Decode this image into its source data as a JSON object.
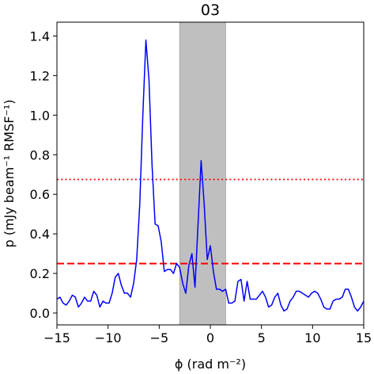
{
  "chart_data": {
    "type": "line",
    "title": "03",
    "xlabel": "ϕ (rad m⁻²)",
    "ylabel": "p (mJy beam⁻¹ RMSF⁻¹)",
    "xlim": [
      -15,
      15
    ],
    "ylim": [
      -0.06,
      1.47
    ],
    "xticks": [
      -15,
      -10,
      -5,
      0,
      5,
      10,
      15
    ],
    "xtick_labels": [
      "−15",
      "−10",
      "−5",
      "0",
      "5",
      "10",
      "15"
    ],
    "yticks": [
      0.0,
      0.2,
      0.4,
      0.6,
      0.8,
      1.0,
      1.2,
      1.4
    ],
    "ytick_labels": [
      "0.0",
      "0.2",
      "0.4",
      "0.6",
      "0.8",
      "1.0",
      "1.2",
      "1.4"
    ],
    "grid": false,
    "shaded_band": {
      "x": [
        -3.0,
        1.5
      ],
      "color": "#bfbfbf"
    },
    "hlines": [
      {
        "y": 0.675,
        "style": "dotted",
        "color": "#ff0000"
      },
      {
        "y": 0.25,
        "style": "dashed",
        "color": "#ff0000"
      }
    ],
    "series": [
      {
        "color": "#0000ff",
        "x": [
          -15.0,
          -14.7,
          -14.4,
          -14.1,
          -13.8,
          -13.5,
          -13.2,
          -12.9,
          -12.6,
          -12.3,
          -12.0,
          -11.7,
          -11.4,
          -11.1,
          -10.8,
          -10.5,
          -10.2,
          -9.9,
          -9.6,
          -9.3,
          -9.0,
          -8.7,
          -8.4,
          -8.1,
          -7.8,
          -7.5,
          -7.2,
          -6.9,
          -6.6,
          -6.3,
          -6.0,
          -5.7,
          -5.4,
          -5.1,
          -4.8,
          -4.5,
          -4.2,
          -3.9,
          -3.6,
          -3.3,
          -3.0,
          -2.7,
          -2.4,
          -2.1,
          -1.8,
          -1.5,
          -1.2,
          -0.9,
          -0.6,
          -0.3,
          0.0,
          0.3,
          0.6,
          0.9,
          1.2,
          1.5,
          1.8,
          2.1,
          2.4,
          2.7,
          3.0,
          3.3,
          3.6,
          3.9,
          4.2,
          4.5,
          4.8,
          5.1,
          5.4,
          5.7,
          6.0,
          6.3,
          6.6,
          6.9,
          7.2,
          7.5,
          7.8,
          8.1,
          8.4,
          8.7,
          9.0,
          9.3,
          9.6,
          9.9,
          10.2,
          10.5,
          10.8,
          11.1,
          11.4,
          11.7,
          12.0,
          12.3,
          12.6,
          12.9,
          13.2,
          13.5,
          13.8,
          14.1,
          14.4,
          14.7,
          15.0
        ],
        "y": [
          0.07,
          0.08,
          0.05,
          0.04,
          0.06,
          0.09,
          0.08,
          0.03,
          0.05,
          0.08,
          0.06,
          0.06,
          0.11,
          0.09,
          0.03,
          0.06,
          0.05,
          0.05,
          0.1,
          0.18,
          0.2,
          0.14,
          0.1,
          0.1,
          0.08,
          0.15,
          0.27,
          0.55,
          1.0,
          1.38,
          1.18,
          0.75,
          0.45,
          0.44,
          0.36,
          0.21,
          0.22,
          0.22,
          0.2,
          0.25,
          0.23,
          0.15,
          0.1,
          0.24,
          0.3,
          0.13,
          0.45,
          0.77,
          0.55,
          0.27,
          0.34,
          0.21,
          0.12,
          0.12,
          0.11,
          0.12,
          0.05,
          0.05,
          0.06,
          0.16,
          0.17,
          0.06,
          0.16,
          0.07,
          0.07,
          0.07,
          0.09,
          0.11,
          0.08,
          0.03,
          0.04,
          0.08,
          0.1,
          0.04,
          0.01,
          0.02,
          0.06,
          0.08,
          0.11,
          0.11,
          0.1,
          0.09,
          0.08,
          0.1,
          0.11,
          0.1,
          0.07,
          0.03,
          0.02,
          0.02,
          0.06,
          0.07,
          0.07,
          0.08,
          0.12,
          0.12,
          0.08,
          0.03,
          0.01,
          0.03,
          0.06
        ]
      }
    ]
  }
}
